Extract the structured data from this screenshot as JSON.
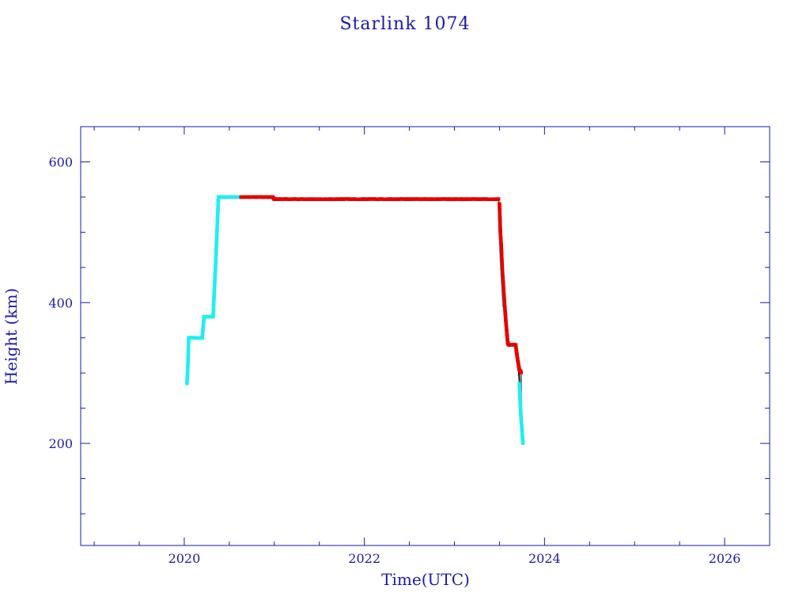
{
  "chart_data": {
    "type": "scatter",
    "title": "Starlink 1074",
    "xlabel": "Time(UTC)",
    "ylabel": "Height (km)",
    "xlim": [
      2018.85,
      2026.5
    ],
    "ylim": [
      55,
      650
    ],
    "x_ticks": [
      2020,
      2022,
      2024,
      2026
    ],
    "x_tick_labels": [
      "2020",
      "2022",
      "2024",
      "2026"
    ],
    "y_ticks": [
      200,
      400,
      600
    ],
    "y_tick_labels": [
      "200",
      "400",
      "600"
    ],
    "grid": false,
    "colors": {
      "axis": "#1a1aa6",
      "trace": "#000000",
      "cyan": "#22eef0",
      "red": "#e60000"
    },
    "series": [
      {
        "color": "cyan",
        "segments": [
          [
            [
              2020.03,
              285
            ],
            [
              2020.04,
              310
            ],
            [
              2020.05,
              350
            ],
            [
              2020.1,
              350
            ],
            [
              2020.2,
              350
            ],
            [
              2020.22,
              380
            ],
            [
              2020.3,
              380
            ],
            [
              2020.32,
              380
            ],
            [
              2020.35,
              460
            ],
            [
              2020.38,
              550
            ],
            [
              2020.5,
              550
            ],
            [
              2020.62,
              550
            ]
          ],
          [
            [
              2023.5,
              535
            ],
            [
              2023.52,
              465
            ],
            [
              2023.55,
              395
            ]
          ],
          [
            [
              2023.72,
              285
            ],
            [
              2023.73,
              260
            ],
            [
              2023.74,
              235
            ],
            [
              2023.75,
              220
            ],
            [
              2023.76,
              200
            ]
          ]
        ]
      },
      {
        "color": "red",
        "segments": [
          [
            [
              2020.63,
              550
            ],
            [
              2020.8,
              550
            ],
            [
              2020.98,
              550
            ],
            [
              2021.0,
              547
            ],
            [
              2021.5,
              547
            ],
            [
              2022.0,
              547
            ],
            [
              2022.5,
              547
            ],
            [
              2023.0,
              547
            ],
            [
              2023.49,
              547
            ]
          ],
          [
            [
              2023.5,
              540
            ],
            [
              2023.51,
              500
            ],
            [
              2023.52,
              480
            ],
            [
              2023.53,
              450
            ],
            [
              2023.55,
              410
            ],
            [
              2023.57,
              375
            ],
            [
              2023.59,
              345
            ],
            [
              2023.6,
              340
            ],
            [
              2023.65,
              340
            ],
            [
              2023.68,
              340
            ],
            [
              2023.7,
              320
            ],
            [
              2023.72,
              305
            ],
            [
              2023.74,
              300
            ]
          ]
        ]
      }
    ]
  }
}
